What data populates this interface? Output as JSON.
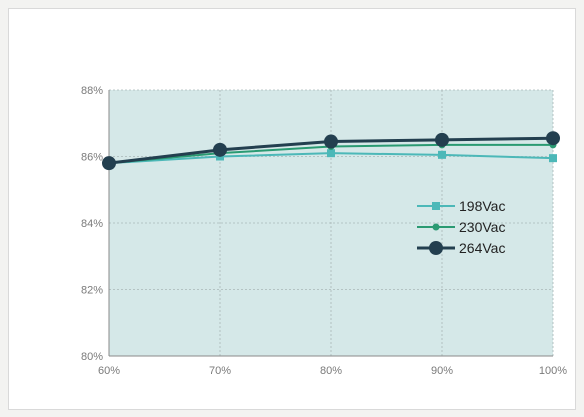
{
  "chart_data": {
    "type": "line",
    "x": [
      "60%",
      "70%",
      "80%",
      "90%",
      "100%"
    ],
    "ylim": [
      80,
      88
    ],
    "yticks": [
      80,
      82,
      84,
      86,
      88
    ],
    "ytick_labels": [
      "80%",
      "82%",
      "84%",
      "86%",
      "88%"
    ],
    "grid": true,
    "legend_position": "right",
    "plot_background": "#d5e8e8",
    "series": [
      {
        "name": "198Vac",
        "values": [
          85.8,
          86.0,
          86.1,
          86.05,
          85.95
        ],
        "color": "#4cb8b8",
        "marker": "square"
      },
      {
        "name": "230Vac",
        "values": [
          85.8,
          86.1,
          86.3,
          86.35,
          86.35
        ],
        "color": "#2a9a72",
        "marker": "circle-small"
      },
      {
        "name": "264Vac",
        "values": [
          85.8,
          86.2,
          86.45,
          86.5,
          86.55
        ],
        "color": "#233f4f",
        "marker": "circle-large"
      }
    ]
  }
}
